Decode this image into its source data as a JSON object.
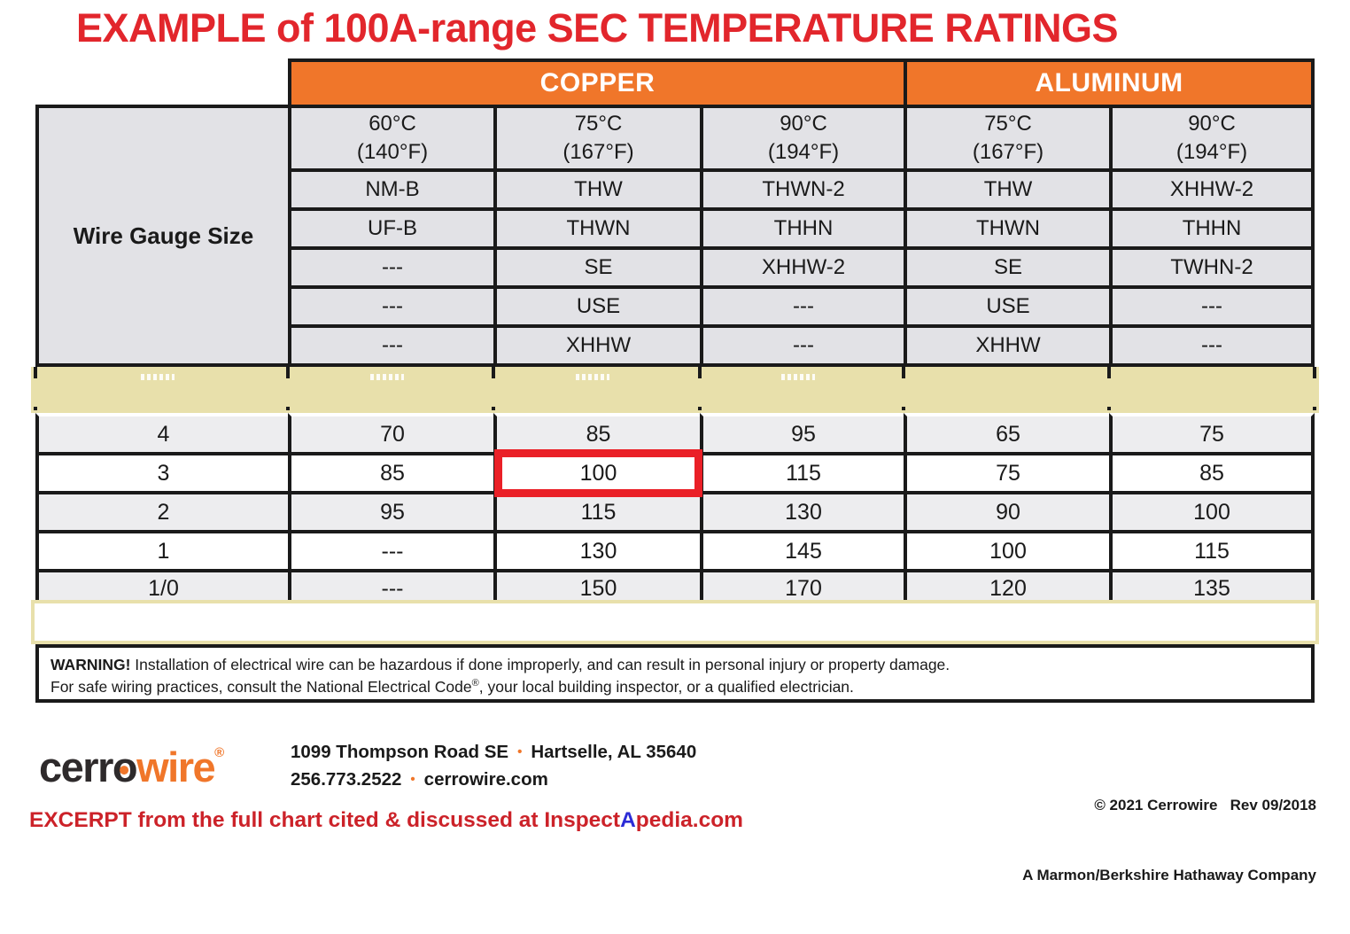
{
  "title": "EXAMPLE of 100A-range SEC TEMPERATURE RATINGS",
  "table": {
    "group_headers": [
      "COPPER",
      "ALUMINUM"
    ],
    "row_axis_label": "Wire Gauge Size",
    "temp_headers": [
      {
        "celsius": "60°C",
        "fahrenheit": "(140°F)"
      },
      {
        "celsius": "75°C",
        "fahrenheit": "(167°F)"
      },
      {
        "celsius": "90°C",
        "fahrenheit": "(194°F)"
      },
      {
        "celsius": "75°C",
        "fahrenheit": "(167°F)"
      },
      {
        "celsius": "90°C",
        "fahrenheit": "(194°F)"
      }
    ],
    "wire_type_rows": [
      [
        "NM-B",
        "THW",
        "THWN-2",
        "THW",
        "XHHW-2"
      ],
      [
        "UF-B",
        "THWN",
        "THHN",
        "THWN",
        "THHN"
      ],
      [
        "---",
        "SE",
        "XHHW-2",
        "SE",
        "TWHN-2"
      ],
      [
        "---",
        "USE",
        "---",
        "USE",
        "---"
      ],
      [
        "---",
        "XHHW",
        "---",
        "XHHW",
        "---"
      ]
    ],
    "ampacity_rows": [
      {
        "gauge": "4",
        "values": [
          "70",
          "85",
          "95",
          "65",
          "75"
        ]
      },
      {
        "gauge": "3",
        "values": [
          "85",
          "100",
          "115",
          "75",
          "85"
        ],
        "highlight_value_index": 1
      },
      {
        "gauge": "2",
        "values": [
          "95",
          "115",
          "130",
          "90",
          "100"
        ]
      },
      {
        "gauge": "1",
        "values": [
          "---",
          "130",
          "145",
          "100",
          "115"
        ]
      },
      {
        "gauge": "1/0",
        "values": [
          "---",
          "150",
          "170",
          "120",
          "135"
        ]
      }
    ],
    "highlight": {
      "gauge": "3",
      "column": "COPPER 75°C (167°F)",
      "value": "100"
    }
  },
  "warning": {
    "label": "WARNING!",
    "line1": " Installation of electrical wire can be hazardous if done improperly, and can result in personal injury or property damage.",
    "line2_before_reg": "For safe wiring practices, consult the National Electrical Code",
    "registered_mark": "®",
    "line2_after_reg": ", your local building inspector, or a qualified electrician."
  },
  "footer": {
    "logo": {
      "part_dark": "cerr",
      "part_o": "o",
      "part_orange": "wire",
      "registered_mark": "®"
    },
    "address_street": "1099 Thompson Road SE",
    "address_city": "Hartselle, AL 35640",
    "phone": "256.773.2522",
    "website": "cerrowire.com",
    "separator": "•",
    "copyright_line1": "© 2021 Cerrowire   Rev 09/2018",
    "copyright_line2": "A Marmon/Berkshire Hathaway Company"
  },
  "excerpt_note": {
    "before_blue": "EXCERPT from the full chart cited & discussed at Inspect",
    "blue_letter": "A",
    "after_blue": "pedia.com"
  },
  "colors": {
    "brand_orange": "#F0762A",
    "title_red": "#E2262C",
    "highlight_box_red": "#EA2027",
    "band_yellow": "#E8E0AB",
    "header_gray": "#E2E2E6",
    "alt_row_gray": "#EDEDEF",
    "excerpt_red": "#CC2229",
    "link_blue": "#2B2BD6"
  }
}
